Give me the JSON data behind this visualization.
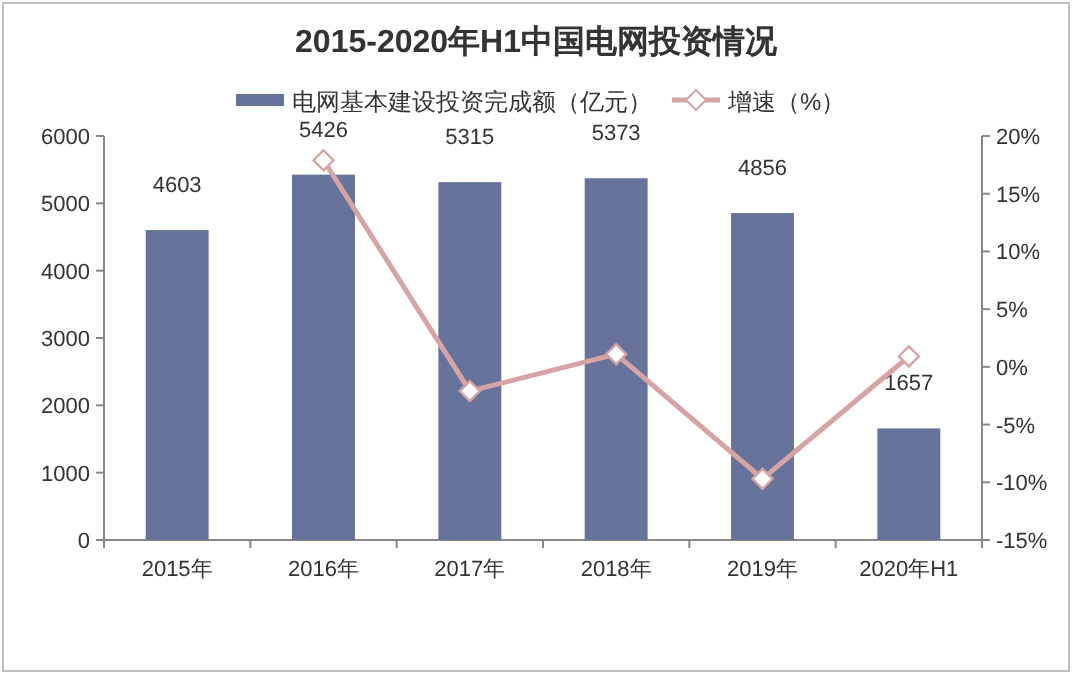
{
  "chart_data": {
    "type": "bar",
    "title": "2015-2020年H1中国电网投资情况",
    "categories": [
      "2015年",
      "2016年",
      "2017年",
      "2018年",
      "2019年",
      "2020年H1"
    ],
    "series": [
      {
        "name": "电网基本建设投资完成额（亿元）",
        "color": "#67739b",
        "values": [
          4603,
          5426,
          5315,
          5373,
          4856,
          1657
        ],
        "value_labels": [
          "4603",
          "5426",
          "5315",
          "5373",
          "4856",
          "1657"
        ]
      },
      {
        "name": "增速（%）",
        "type": "line",
        "axis": "y2",
        "color": "#d6a4a4",
        "marker": "diamond",
        "values": [
          null,
          17.9,
          -2.1,
          1.1,
          -9.7,
          0.9
        ]
      }
    ],
    "ylim": [
      0,
      6000
    ],
    "yticks": [
      0,
      1000,
      2000,
      3000,
      4000,
      5000,
      6000
    ],
    "y2lim": [
      -15,
      20
    ],
    "y2ticks": [
      {
        "value": -15,
        "label": "-15%"
      },
      {
        "value": -10,
        "label": "-10%"
      },
      {
        "value": -5,
        "label": "-5%"
      },
      {
        "value": 0,
        "label": "0%"
      },
      {
        "value": 5,
        "label": "5%"
      },
      {
        "value": 10,
        "label": "10%"
      },
      {
        "value": 15,
        "label": "15%"
      },
      {
        "value": 20,
        "label": "20%"
      }
    ],
    "legend": "top",
    "grid": false
  }
}
